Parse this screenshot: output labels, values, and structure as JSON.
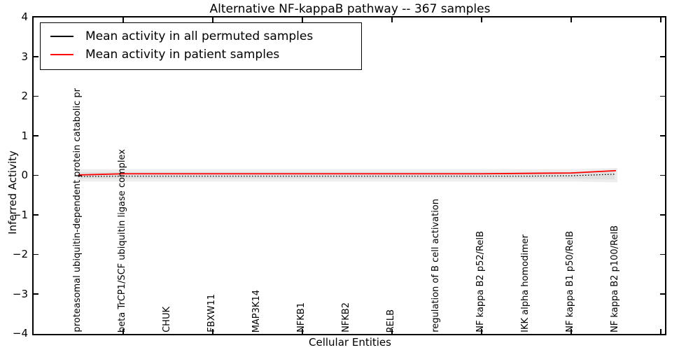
{
  "title": "Alternative NF-kappaB pathway -- 367 samples",
  "axes": {
    "ylabel": "Inferred Activity",
    "xlabel": "Cellular Entities",
    "ytick_labels": [
      "4",
      "3",
      "2",
      "1",
      "0",
      "−1",
      "−2",
      "−3",
      "−4"
    ]
  },
  "legend": [
    {
      "label": "Mean activity in all permuted samples",
      "color": "#000000"
    },
    {
      "label": "Mean activity in patient samples",
      "color": "#ff0000"
    }
  ],
  "chart_data": {
    "type": "line",
    "title": "Alternative NF-kappaB pathway -- 367 samples",
    "xlabel": "Cellular Entities",
    "ylabel": "Inferred Activity",
    "ylim": [
      -4,
      4
    ],
    "yticks": [
      4,
      3,
      2,
      1,
      0,
      -1,
      -2,
      -3,
      -4
    ],
    "grid": false,
    "legend_position": "upper left",
    "categories": [
      "proteasomal ubiquitin-dependent protein catabolic pr",
      "beta TrCP1/SCF ubiquitin ligase complex",
      "CHUK",
      "FBXW11",
      "MAP3K14",
      "NFKB1",
      "NFKB2",
      "RELB",
      "regulation of B cell activation",
      "NF kappa B2 p52/RelB",
      "IKK alpha homodimer",
      "NF kappa B1 p50/RelB",
      "NF kappa B2 p100/RelB"
    ],
    "series": [
      {
        "name": "Mean activity in all permuted samples",
        "color": "#000000",
        "line_style": "dotted",
        "values": [
          -0.03,
          -0.02,
          -0.02,
          -0.02,
          -0.02,
          -0.02,
          -0.02,
          -0.02,
          -0.02,
          -0.02,
          -0.02,
          -0.01,
          0.03
        ]
      },
      {
        "name": "Mean activity in patient samples",
        "color": "#ff0000",
        "line_style": "solid",
        "values": [
          0.01,
          0.04,
          0.04,
          0.04,
          0.04,
          0.04,
          0.04,
          0.04,
          0.04,
          0.04,
          0.05,
          0.06,
          0.12
        ]
      }
    ],
    "band": {
      "name": "permuted samples spread",
      "color": "#e0e0e0",
      "upper": [
        0.12,
        0.12,
        0.12,
        0.12,
        0.12,
        0.12,
        0.12,
        0.12,
        0.12,
        0.12,
        0.12,
        0.12,
        0.15
      ],
      "lower": [
        -0.12,
        -0.12,
        -0.12,
        -0.12,
        -0.12,
        -0.12,
        -0.12,
        -0.12,
        -0.12,
        -0.12,
        -0.12,
        -0.12,
        -0.14
      ]
    },
    "xticks_axis_units": [
      2,
      4,
      6,
      8,
      10,
      12,
      14
    ]
  }
}
